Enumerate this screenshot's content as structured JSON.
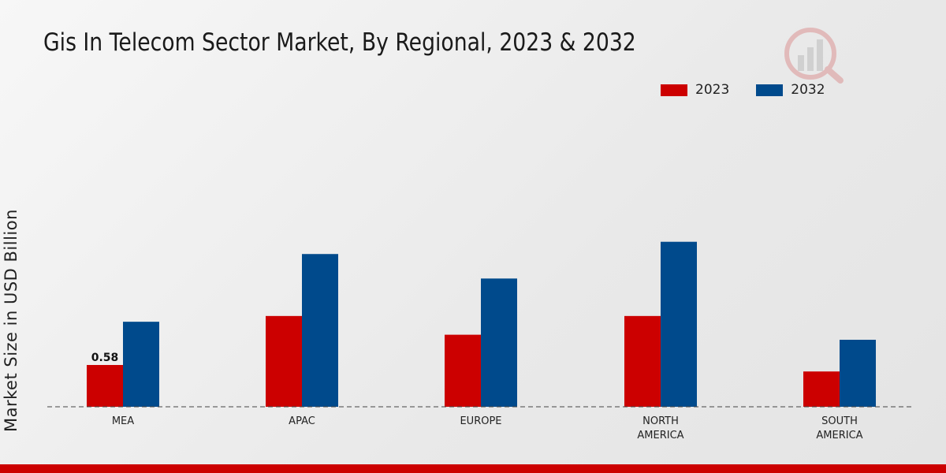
{
  "chart_data": {
    "type": "bar",
    "title": "Gis In Telecom Sector Market, By Regional, 2023 & 2032",
    "xlabel": "",
    "ylabel": "Market Size in USD Billion",
    "categories": [
      "MEA",
      "APAC",
      "EUROPE",
      "NORTH AMERICA",
      "SOUTH AMERICA"
    ],
    "category_lines": [
      [
        "MEA"
      ],
      [
        "APAC"
      ],
      [
        "EUROPE"
      ],
      [
        "NORTH",
        "AMERICA"
      ],
      [
        "SOUTH",
        "AMERICA"
      ]
    ],
    "series": [
      {
        "name": "2023",
        "color": "#cc0000",
        "values": [
          0.58,
          1.26,
          1.0,
          1.26,
          0.49
        ]
      },
      {
        "name": "2032",
        "color": "#004a8c",
        "values": [
          1.18,
          2.12,
          1.78,
          2.29,
          0.93
        ]
      }
    ],
    "data_labels": [
      {
        "series": 0,
        "index": 0,
        "text": "0.58"
      }
    ],
    "ylim": [
      0,
      2.9
    ],
    "grid": false,
    "legend_position": "top-right"
  }
}
